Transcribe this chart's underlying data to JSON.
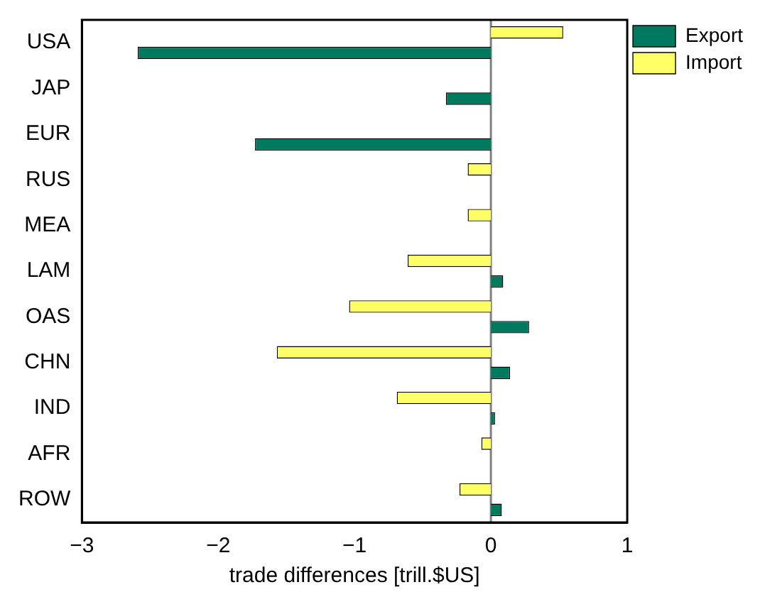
{
  "chart_data": {
    "type": "bar",
    "orientation": "horizontal",
    "xlabel": "trade differences [trill.$US]",
    "categories": [
      "USA",
      "JAP",
      "EUR",
      "RUS",
      "MEA",
      "LAM",
      "OAS",
      "CHN",
      "IND",
      "AFR",
      "ROW"
    ],
    "series": [
      {
        "name": "Export",
        "color": "#007a5e",
        "values": [
          -2.59,
          -0.33,
          -1.73,
          0,
          0,
          0.09,
          0.28,
          0.14,
          0.03,
          0,
          0.08
        ]
      },
      {
        "name": "Import",
        "color": "#ffff66",
        "values": [
          0.53,
          0,
          0,
          -0.17,
          -0.17,
          -0.61,
          -1.04,
          -1.57,
          -0.69,
          -0.07,
          -0.23
        ]
      }
    ],
    "xlim": [
      -3,
      1
    ],
    "xticks": [
      {
        "value": -3,
        "label": "−3"
      },
      {
        "value": -2,
        "label": "−2"
      },
      {
        "value": -1,
        "label": "−1"
      },
      0,
      1
    ],
    "ref_lines": [
      {
        "axis": "x",
        "value": 0,
        "color": "#808080"
      }
    ],
    "grid": false,
    "legend": "top right"
  }
}
